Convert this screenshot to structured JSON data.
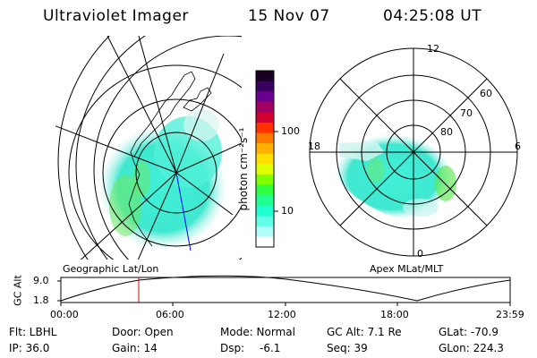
{
  "header": {
    "instrument": "Ultraviolet Imager",
    "date": "15 Nov 07",
    "time": "04:25:08 UT"
  },
  "colorbar": {
    "label": "photon cm⁻²s⁻¹",
    "ticks": [
      "100",
      "10"
    ],
    "colors": [
      "#1a0020",
      "#3a0060",
      "#6a0090",
      "#a00060",
      "#d00030",
      "#ff3000",
      "#ff7800",
      "#ffb000",
      "#ffe000",
      "#e0ff00",
      "#80ff00",
      "#30ff40",
      "#20ff90",
      "#20ffd0",
      "#60ffe8",
      "#b0fff8",
      "#ffffff"
    ]
  },
  "left_map": {
    "caption": "Geographic Lat/Lon"
  },
  "right_map": {
    "caption": "Apex MLat/MLT",
    "mlt_labels": [
      "12",
      "18",
      "6",
      "0"
    ],
    "lat_labels": [
      "60",
      "70",
      "80"
    ]
  },
  "altitude_plot": {
    "ylabel": "GC Alt",
    "y_ticks": [
      "9.0",
      "1.8"
    ],
    "x_ticks": [
      "00:00",
      "06:00",
      "12:00",
      "18:00",
      "23:59"
    ],
    "marker_color": "#e00000"
  },
  "status": {
    "flt": "Flt: LBHL",
    "door": "Door: Open",
    "mode": "Mode: Normal",
    "gc_alt": "GC Alt: 7.1 Re",
    "glat": "GLat: -70.9",
    "ip": "IP: 36.0",
    "gain": "Gain: 14",
    "dsp_label": "Dsp:",
    "dsp_value": "-6.1",
    "seq": "Seq: 39",
    "glon": "GLon: 224.3"
  }
}
